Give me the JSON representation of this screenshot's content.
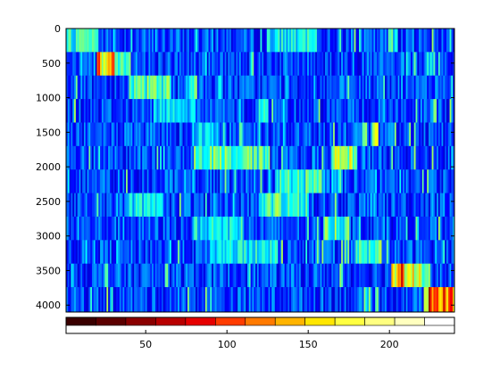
{
  "chart_data": {
    "type": "heatmap",
    "title": "",
    "xlabel": "",
    "ylabel": "",
    "colormap": "jet",
    "background_color": "#0a1fbf",
    "xlim": [
      1,
      240
    ],
    "ylim": [
      0,
      4100
    ],
    "y_reversed": true,
    "x_ticks": [
      50,
      100,
      150,
      200
    ],
    "y_ticks": [
      0,
      500,
      1000,
      1500,
      2000,
      2500,
      3000,
      3500,
      4000
    ],
    "x_tick_labels": [
      "50",
      "100",
      "150",
      "200"
    ],
    "y_tick_labels": [
      "0",
      "500",
      "1000",
      "1500",
      "2000",
      "2500",
      "3000",
      "3500",
      "4000"
    ],
    "grid": false,
    "note_values": "intensity on 0-1 scale of the jet colormap; cells read approximately from the image",
    "bands": [
      {
        "row_start": 0,
        "row_end": 340,
        "hot_regions": [
          {
            "x": [
              1,
              20
            ],
            "level": 0.5
          },
          {
            "x": [
              125,
              155
            ],
            "level": 0.45
          },
          {
            "x": [
              200,
              205
            ],
            "level": 0.5
          }
        ]
      },
      {
        "row_start": 340,
        "row_end": 680,
        "hot_regions": [
          {
            "x": [
              20,
              30
            ],
            "level": 0.9
          },
          {
            "x": [
              30,
              40
            ],
            "level": 0.55
          }
        ]
      },
      {
        "row_start": 680,
        "row_end": 1020,
        "hot_regions": [
          {
            "x": [
              40,
              65
            ],
            "level": 0.55
          },
          {
            "x": [
              75,
              80
            ],
            "level": 0.5
          }
        ]
      },
      {
        "row_start": 1020,
        "row_end": 1360,
        "hot_regions": [
          {
            "x": [
              55,
              80
            ],
            "level": 0.4
          },
          {
            "x": [
              120,
              125
            ],
            "level": 0.45
          }
        ]
      },
      {
        "row_start": 1360,
        "row_end": 1700,
        "hot_regions": [
          {
            "x": [
              80,
              95
            ],
            "level": 0.4
          },
          {
            "x": [
              190,
              193
            ],
            "level": 0.85
          }
        ]
      },
      {
        "row_start": 1700,
        "row_end": 2040,
        "hot_regions": [
          {
            "x": [
              80,
              125
            ],
            "level": 0.55
          },
          {
            "x": [
              165,
              180
            ],
            "level": 0.7
          }
        ]
      },
      {
        "row_start": 2040,
        "row_end": 2380,
        "hot_regions": [
          {
            "x": [
              130,
              160
            ],
            "level": 0.5
          },
          {
            "x": [
              150,
              155
            ],
            "level": 0.6
          }
        ]
      },
      {
        "row_start": 2380,
        "row_end": 2720,
        "hot_regions": [
          {
            "x": [
              40,
              60
            ],
            "level": 0.45
          },
          {
            "x": [
              120,
              150
            ],
            "level": 0.55
          }
        ]
      },
      {
        "row_start": 2720,
        "row_end": 3060,
        "hot_regions": [
          {
            "x": [
              80,
              110
            ],
            "level": 0.45
          },
          {
            "x": [
              160,
              175
            ],
            "level": 0.55
          }
        ]
      },
      {
        "row_start": 3060,
        "row_end": 3400,
        "hot_regions": [
          {
            "x": [
              90,
              130
            ],
            "level": 0.45
          },
          {
            "x": [
              180,
              195
            ],
            "level": 0.55
          }
        ]
      },
      {
        "row_start": 3400,
        "row_end": 3740,
        "hot_regions": [
          {
            "x": [
              202,
              215
            ],
            "level": 0.92
          },
          {
            "x": [
              215,
              225
            ],
            "level": 0.65
          }
        ]
      },
      {
        "row_start": 3740,
        "row_end": 4100,
        "hot_regions": [
          {
            "x": [
              222,
              240
            ],
            "level": 0.93
          }
        ]
      }
    ],
    "colorbar": {
      "orientation": "horizontal",
      "placement": "bottom",
      "segments": [
        "#3a0000",
        "#5c0000",
        "#8a0000",
        "#b80000",
        "#e60000",
        "#ff3c00",
        "#ff7a00",
        "#ffb400",
        "#ffe600",
        "#ffff40",
        "#ffff80",
        "#ffffbf",
        "#ffffff"
      ]
    }
  }
}
